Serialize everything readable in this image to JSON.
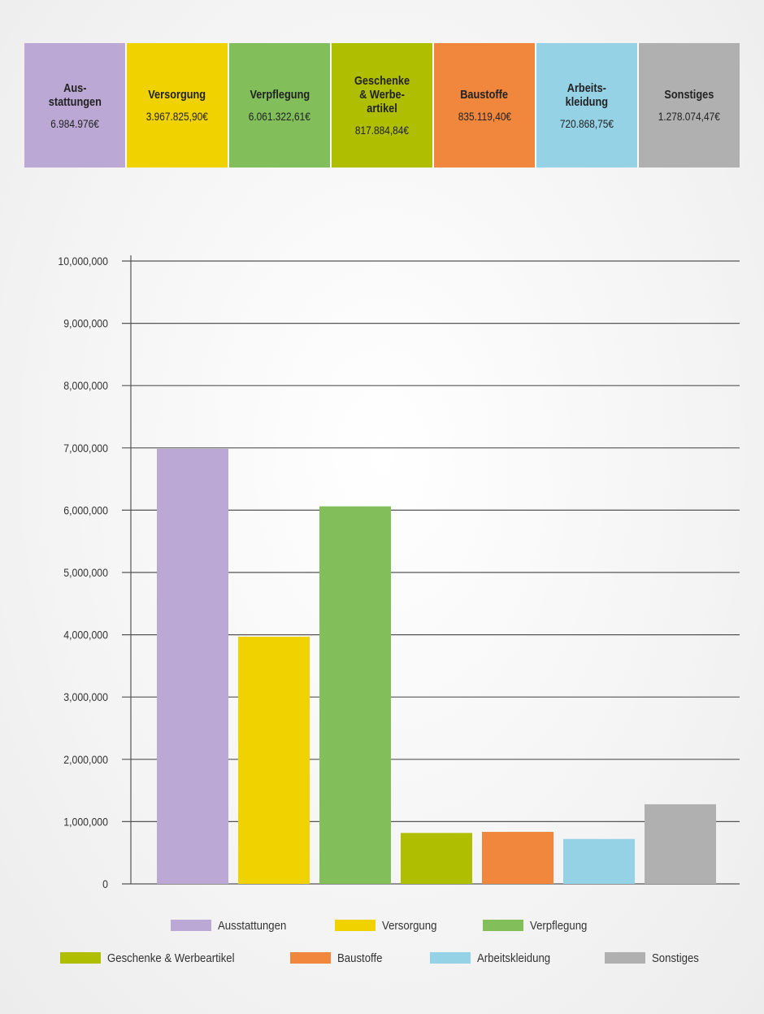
{
  "header": {
    "items": [
      {
        "name": "Aus-\nstattungen",
        "value": "6.984.976€",
        "color": "#bba8d4"
      },
      {
        "name": "Versorgung",
        "value": "3.967.825,90€",
        "color": "#f0d200"
      },
      {
        "name": "Verpflegung",
        "value": "6.061.322,61€",
        "color": "#82be5a"
      },
      {
        "name": "Geschenke\n& Werbe-\nartikel",
        "value": "817.884,84€",
        "color": "#b0be00"
      },
      {
        "name": "Baustoffe",
        "value": "835.119,40€",
        "color": "#f0873c"
      },
      {
        "name": "Arbeits-\nkleidung",
        "value": "720.868,75€",
        "color": "#96d2e6"
      },
      {
        "name": "Sonstiges",
        "value": "1.278.074,47€",
        "color": "#b0b0b0"
      }
    ]
  },
  "chart_data": {
    "type": "bar",
    "title": "",
    "xlabel": "",
    "ylabel": "",
    "ylim": [
      0,
      10000000
    ],
    "grid": true,
    "legend_position": "bottom",
    "yticks": [
      "0",
      "1,000,000",
      "2,000,000",
      "3,000,000",
      "4,000,000",
      "5,000,000",
      "6,000,000",
      "7,000,000",
      "8,000,000",
      "9,000,000",
      "10,000,000"
    ],
    "categories": [
      "Ausstattungen",
      "Versorgung",
      "Verpflegung",
      "Geschenke & Werbeartikel",
      "Baustoffe",
      "Arbeitskleidung",
      "Sonstiges"
    ],
    "values": [
      6984976,
      3967825.9,
      6061322.61,
      817884.84,
      835119.4,
      720868.75,
      1278074.47
    ],
    "colors": [
      "#bba8d4",
      "#f0d200",
      "#82be5a",
      "#b0be00",
      "#f0873c",
      "#96d2e6",
      "#b0b0b0"
    ]
  }
}
